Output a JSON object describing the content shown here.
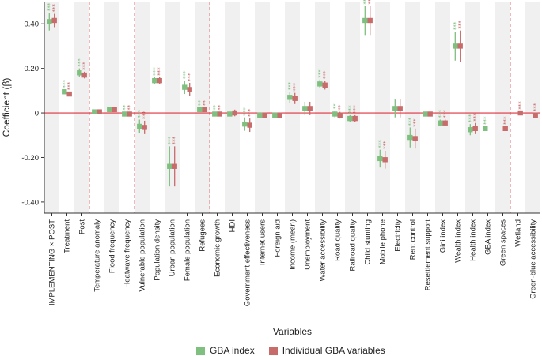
{
  "chart_data": {
    "type": "scatter",
    "ylabel": "Coefficient (β)",
    "xlabel": "Variables",
    "ylim": [
      -0.45,
      0.5
    ],
    "yticks": [
      {
        "value": 0.4,
        "label": "0.40"
      },
      {
        "value": 0.2,
        "label": "0.20"
      },
      {
        "value": 0,
        "label": "0"
      },
      {
        "value": -0.2,
        "label": "-0.20"
      },
      {
        "value": -0.4,
        "label": "-0.40"
      }
    ],
    "zero_line": true,
    "group_separators_after": [
      2,
      5,
      10,
      30
    ],
    "colors": {
      "gba": "#7fbf7f",
      "ind": "#c76b6b",
      "zero": "#e0303c",
      "sep": "#e07070",
      "band": "#f0f0f0"
    },
    "categories": [
      "IMPLEMENTING × POST",
      "Treatment",
      "Post",
      "Temperature anomaly",
      "Flood frequency",
      "Heatwave frequency",
      "Vulnerable population",
      "Population density",
      "Urban population",
      "Female population",
      "Refugees",
      "Economic growth",
      "HDI",
      "Government effectiveness",
      "Internet users",
      "Foreign aid",
      "Income (mean)",
      "Unemployment",
      "Water accessibility",
      "Road quality",
      "Railroad quality",
      "Child stunting",
      "Mobile phone",
      "Electricity",
      "Rent control",
      "Resettlement support",
      "Gini index",
      "Wealth index",
      "Health index",
      "GBA index",
      "Green spaces",
      "Wetland",
      "Green-blue accessibility"
    ],
    "series": [
      {
        "name": "GBA index",
        "values": [
          0.41,
          0.095,
          0.18,
          0.005,
          0.015,
          -0.005,
          -0.06,
          0.145,
          -0.24,
          0.115,
          0.015,
          -0.005,
          -0.005,
          -0.05,
          -0.01,
          -0.01,
          0.07,
          0.02,
          0.13,
          -0.005,
          -0.025,
          0.415,
          -0.205,
          0.02,
          -0.11,
          -0.005,
          -0.045,
          0.3,
          -0.075,
          -0.07,
          null,
          null,
          null
        ],
        "lower": [
          0.37,
          0.085,
          0.16,
          -0.005,
          0.005,
          -0.015,
          -0.09,
          0.13,
          -0.33,
          0.085,
          0.005,
          -0.015,
          -0.015,
          -0.08,
          -0.02,
          -0.02,
          0.045,
          -0.01,
          0.11,
          -0.02,
          -0.04,
          0.35,
          -0.245,
          -0.02,
          -0.155,
          -0.015,
          -0.06,
          0.235,
          -0.1,
          -0.08,
          null,
          null,
          null
        ],
        "upper": [
          0.45,
          0.105,
          0.2,
          0.015,
          0.025,
          0.005,
          -0.03,
          0.16,
          -0.15,
          0.145,
          0.025,
          0.005,
          0.005,
          -0.02,
          0.0,
          0.0,
          0.095,
          0.05,
          0.15,
          0.01,
          -0.01,
          0.48,
          -0.165,
          0.06,
          -0.065,
          0.005,
          -0.03,
          0.365,
          -0.05,
          -0.06,
          null,
          null,
          null
        ],
        "stars": [
          "***",
          "***",
          "***",
          "",
          "",
          "**",
          "***",
          "***",
          "***",
          "***",
          "**",
          "**",
          "",
          "***",
          "",
          "",
          "***",
          "",
          "***",
          "**",
          "***",
          "***",
          "***",
          "",
          "***",
          "",
          "***",
          "***",
          "***",
          "***",
          "",
          "",
          ""
        ]
      },
      {
        "name": "Individual GBA variables",
        "values": [
          0.415,
          0.085,
          0.17,
          0.005,
          0.015,
          -0.005,
          -0.065,
          0.145,
          -0.24,
          0.105,
          0.015,
          -0.005,
          0.0,
          -0.055,
          -0.01,
          -0.01,
          0.065,
          0.02,
          0.125,
          -0.01,
          -0.025,
          0.415,
          -0.21,
          0.02,
          -0.115,
          -0.005,
          -0.045,
          0.3,
          -0.07,
          null,
          -0.07,
          0.0,
          -0.01
        ],
        "lower": [
          0.385,
          0.075,
          0.155,
          -0.005,
          0.005,
          -0.015,
          -0.095,
          0.13,
          -0.33,
          0.075,
          0.005,
          -0.015,
          -0.015,
          -0.085,
          -0.02,
          -0.02,
          0.04,
          -0.01,
          0.105,
          -0.025,
          -0.04,
          0.35,
          -0.25,
          -0.02,
          -0.16,
          -0.015,
          -0.06,
          0.23,
          -0.095,
          null,
          -0.08,
          -0.008,
          -0.02
        ],
        "upper": [
          0.445,
          0.095,
          0.185,
          0.015,
          0.025,
          0.005,
          -0.035,
          0.16,
          -0.15,
          0.135,
          0.025,
          0.005,
          0.015,
          -0.025,
          0.0,
          0.0,
          0.09,
          0.05,
          0.145,
          0.005,
          -0.01,
          0.48,
          -0.17,
          0.06,
          -0.07,
          0.005,
          -0.03,
          0.37,
          -0.045,
          null,
          -0.06,
          0.008,
          0.0
        ],
        "stars": [
          "***",
          "***",
          "***",
          "",
          "",
          "**",
          "***",
          "***",
          "***",
          "***",
          "**",
          "**",
          "",
          "***",
          "",
          "",
          "***",
          "",
          "***",
          "**",
          "***",
          "***",
          "***",
          "",
          "***",
          "",
          "***",
          "***",
          "***",
          "",
          "***",
          "***",
          "***"
        ]
      }
    ]
  }
}
